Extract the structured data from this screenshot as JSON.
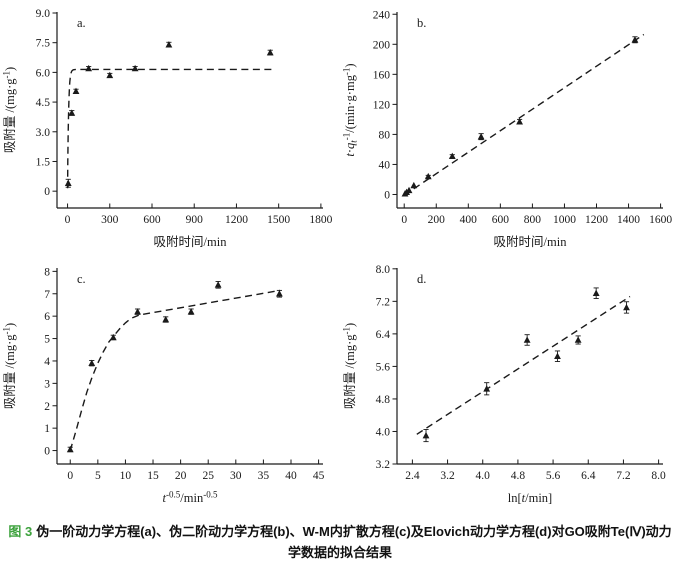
{
  "style": {
    "ink": "#1a1a1a",
    "background": "#ffffff",
    "caption_label_green": "#3da23d"
  },
  "caption": {
    "label": "图 3",
    "text": "伪一阶动力学方程(a)、伪二阶动力学方程(b)、W-M内扩散方程(c)及Elovich动力学方程(d)对GO吸附Te(Ⅳ)动力学数据的拟合结果"
  },
  "chart_data": [
    {
      "id": "a",
      "tag": "a.",
      "type": "scatter",
      "title": "",
      "xlabel": "吸附时间/min",
      "ylabel": "吸附量 /(mg·g^{-1})",
      "grid": false,
      "legend": false,
      "xlim": [
        -75,
        1815
      ],
      "ylim": [
        -0.85,
        9.05
      ],
      "xticks": [
        0,
        300,
        600,
        900,
        1200,
        1500,
        1800
      ],
      "xtick_labels": [
        "0",
        "300",
        "600",
        "900",
        "1200",
        "1500",
        "1800"
      ],
      "yticks": [
        0,
        1.5,
        3.0,
        4.5,
        6.0,
        7.5,
        9.0
      ],
      "ytick_labels": [
        "0",
        "1.5",
        "3.0",
        "4.5",
        "6.0",
        "7.5",
        "9.0"
      ],
      "points": {
        "x": [
          5,
          30,
          60,
          150,
          300,
          480,
          720,
          1440
        ],
        "y": [
          0.4,
          3.95,
          5.05,
          6.2,
          5.85,
          6.2,
          7.4,
          7.0
        ],
        "yerr": [
          0.2,
          0.12,
          0.1,
          0.1,
          0.1,
          0.1,
          0.12,
          0.12
        ]
      },
      "fit": {
        "style": "dashed",
        "x": [
          0.3,
          1,
          2,
          4,
          6,
          8,
          10,
          13,
          16,
          20,
          25,
          30,
          40,
          60,
          100,
          1450
        ],
        "y": [
          0.15,
          0.8,
          1.53,
          2.68,
          3.54,
          4.19,
          4.68,
          5.19,
          5.52,
          5.8,
          5.98,
          6.07,
          6.13,
          6.15,
          6.15,
          6.15
        ]
      }
    },
    {
      "id": "b",
      "tag": "b.",
      "type": "scatter",
      "title": "",
      "xlabel": "吸附时间/min",
      "ylabel": "*t*·*q*_{*t*}^{-1}/(min·g·mg^{-1})",
      "grid": false,
      "legend": false,
      "xlim": [
        -45,
        1615
      ],
      "ylim": [
        -18,
        243
      ],
      "xticks": [
        0,
        200,
        400,
        600,
        800,
        1000,
        1200,
        1400,
        1600
      ],
      "xtick_labels": [
        "0",
        "200",
        "400",
        "600",
        "800",
        "1000",
        "1200",
        "1400",
        "1600"
      ],
      "yticks": [
        0,
        40,
        80,
        120,
        160,
        200,
        240
      ],
      "ytick_labels": [
        "0",
        "40",
        "80",
        "120",
        "160",
        "200",
        "240"
      ],
      "points": {
        "x": [
          5,
          15,
          30,
          60,
          150,
          300,
          480,
          720,
          1440
        ],
        "y": [
          1,
          3,
          5.5,
          12,
          24,
          51,
          77,
          97,
          206
        ],
        "yerr": [
          0,
          0,
          0,
          0,
          1.5,
          2,
          4,
          3,
          4
        ]
      },
      "fit": {
        "style": "dashed",
        "x": [
          0,
          1495
        ],
        "y": [
          -1,
          213
        ]
      }
    },
    {
      "id": "c",
      "tag": "c.",
      "type": "scatter",
      "title": "",
      "xlabel": "*t*^{-0.5}/min^{-0.5}",
      "ylabel": "吸附量 /(mg·g^{-1})",
      "grid": false,
      "legend": false,
      "xlim": [
        -2.4,
        45.8
      ],
      "ylim": [
        -0.6,
        8.15
      ],
      "xticks": [
        0,
        5,
        10,
        15,
        20,
        25,
        30,
        35,
        40,
        45
      ],
      "xtick_labels": [
        "0",
        "5",
        "10",
        "15",
        "20",
        "25",
        "30",
        "35",
        "40",
        "45"
      ],
      "yticks": [
        0,
        1,
        2,
        3,
        4,
        5,
        6,
        7,
        8
      ],
      "ytick_labels": [
        "0",
        "1",
        "2",
        "3",
        "4",
        "5",
        "6",
        "7",
        "8"
      ],
      "points": {
        "x": [
          0,
          3.9,
          7.8,
          12.2,
          17.3,
          21.9,
          26.8,
          37.9
        ],
        "y": [
          0.05,
          3.9,
          5.05,
          6.2,
          5.85,
          6.2,
          7.4,
          7.0
        ],
        "yerr": [
          0.1,
          0.12,
          0.1,
          0.12,
          0.12,
          0.12,
          0.15,
          0.15
        ]
      },
      "fit": {
        "style": "dashed",
        "x": [
          0,
          1,
          2,
          3,
          4,
          5,
          6,
          7,
          8,
          9,
          10,
          11,
          12.5,
          38
        ],
        "y": [
          0,
          0.85,
          1.75,
          2.6,
          3.3,
          3.9,
          4.42,
          4.85,
          5.15,
          5.45,
          5.7,
          5.9,
          6.05,
          7.15
        ]
      }
    },
    {
      "id": "d",
      "tag": "d.",
      "type": "scatter",
      "title": "",
      "xlabel": "ln[*t*/min]",
      "ylabel": "吸附量 /(mg·g^{-1})",
      "grid": false,
      "legend": false,
      "xlim": [
        2.05,
        8.1
      ],
      "ylim": [
        3.2,
        8.02
      ],
      "xticks": [
        2.4,
        3.2,
        4.0,
        4.8,
        5.6,
        6.4,
        7.2,
        8.0
      ],
      "xtick_labels": [
        "2.4",
        "3.2",
        "4.0",
        "4.8",
        "5.6",
        "6.4",
        "7.2",
        "8.0"
      ],
      "yticks": [
        3.2,
        4.0,
        4.8,
        5.6,
        6.4,
        7.2,
        8.0
      ],
      "ytick_labels": [
        "3.2",
        "4.0",
        "4.8",
        "5.6",
        "6.4",
        "7.2",
        "8.0"
      ],
      "points": {
        "x": [
          2.71,
          4.09,
          5.01,
          5.7,
          6.17,
          6.58,
          7.27
        ],
        "y": [
          3.9,
          5.05,
          6.25,
          5.85,
          6.25,
          7.4,
          7.05
        ],
        "yerr": [
          0.15,
          0.15,
          0.13,
          0.13,
          0.1,
          0.13,
          0.14
        ]
      },
      "fit": {
        "style": "dashed",
        "x": [
          2.5,
          7.35
        ],
        "y": [
          3.93,
          7.32
        ]
      }
    }
  ]
}
